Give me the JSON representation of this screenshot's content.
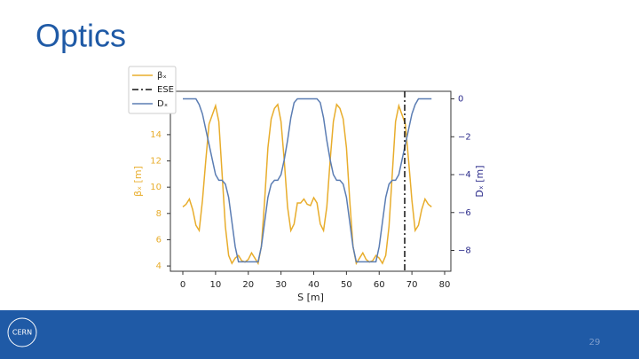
{
  "slide": {
    "title": "Optics",
    "page_number": "29",
    "logo": "CERN"
  },
  "chart_data": {
    "type": "line",
    "xlabel": "S [m]",
    "ylabel": "βₓ [m]",
    "y2label": "Dₓ [m]",
    "xlim": [
      -3.8,
      81.9
    ],
    "xticks": [
      0,
      10,
      20,
      30,
      40,
      50,
      60,
      70,
      80
    ],
    "ylim": [
      3.6,
      17.3
    ],
    "yticks": [
      4,
      6,
      8,
      10,
      12,
      14
    ],
    "y2lim": [
      -9.1,
      0.4
    ],
    "y2ticks": [
      0,
      {
        "value": -2,
        "label": "−2"
      },
      {
        "value": -4,
        "label": "−4"
      },
      {
        "value": -6,
        "label": "−6"
      },
      {
        "value": -8,
        "label": "−8"
      }
    ],
    "legend": "upper left",
    "x": [
      0,
      1,
      2,
      3,
      4,
      5,
      6,
      7,
      8,
      9,
      10,
      11,
      12,
      13,
      14,
      15,
      16,
      17,
      18,
      19,
      20,
      21,
      22,
      23,
      24,
      25,
      26,
      27,
      28,
      29,
      30,
      31,
      32,
      33,
      34,
      35,
      36,
      37,
      38,
      39,
      40,
      41,
      42,
      43,
      44,
      45,
      46,
      47,
      48,
      49,
      50,
      51,
      52,
      53,
      54,
      55,
      56,
      57,
      58,
      59,
      60,
      61,
      62,
      63,
      64,
      65,
      66,
      67,
      68,
      69,
      70,
      71,
      72,
      73,
      74,
      75,
      76
    ],
    "series": [
      {
        "name": "βₓ",
        "color": "#e8ad2c",
        "values": [
          8.5,
          8.7,
          9.1,
          8.3,
          7.1,
          6.7,
          9,
          12,
          14.8,
          15.5,
          16.2,
          15,
          11,
          7,
          4.8,
          4.2,
          4.6,
          4.8,
          4.4,
          4.3,
          4.5,
          5,
          4.6,
          4.2,
          5.5,
          9,
          13,
          15.2,
          16,
          16.3,
          15,
          12,
          8.5,
          6.7,
          7.2,
          8.8,
          8.8,
          9.1,
          8.7,
          8.6,
          9.2,
          8.8,
          7.2,
          6.7,
          8.5,
          12,
          15,
          16.3,
          16,
          15.2,
          13,
          9,
          5.5,
          4.2,
          4.6,
          5,
          4.5,
          4.3,
          4.4,
          4.8,
          4.6,
          4.2,
          4.8,
          7,
          11,
          15,
          16.2,
          15.5,
          14.8,
          12,
          9,
          6.7,
          7.1,
          8.3,
          9.1,
          8.7,
          8.5
        ]
      },
      {
        "name": "Dₓ",
        "color": "#5b7db3",
        "axis": "y2",
        "values": [
          0,
          0,
          0,
          0,
          0,
          -0.3,
          -0.8,
          -1.6,
          -2.4,
          -3.2,
          -4.0,
          -4.3,
          -4.3,
          -4.5,
          -5.2,
          -6.5,
          -7.8,
          -8.6,
          -8.6,
          -8.6,
          -8.6,
          -8.6,
          -8.6,
          -8.6,
          -7.8,
          -6.5,
          -5.2,
          -4.5,
          -4.3,
          -4.3,
          -4.0,
          -3.2,
          -2.2,
          -1.0,
          -0.2,
          0,
          0,
          0,
          0,
          0,
          0,
          0,
          -0.2,
          -1.0,
          -2.2,
          -3.2,
          -4.0,
          -4.3,
          -4.3,
          -4.5,
          -5.2,
          -6.5,
          -7.8,
          -8.6,
          -8.6,
          -8.6,
          -8.6,
          -8.6,
          -8.6,
          -8.6,
          -7.8,
          -6.5,
          -5.2,
          -4.5,
          -4.3,
          -4.3,
          -4.0,
          -3.2,
          -2.4,
          -1.6,
          -0.8,
          -0.3,
          0,
          0,
          0,
          0,
          0
        ]
      }
    ],
    "vlines": [
      {
        "name": "ESE",
        "x": 67.8,
        "color": "#111111"
      }
    ]
  }
}
